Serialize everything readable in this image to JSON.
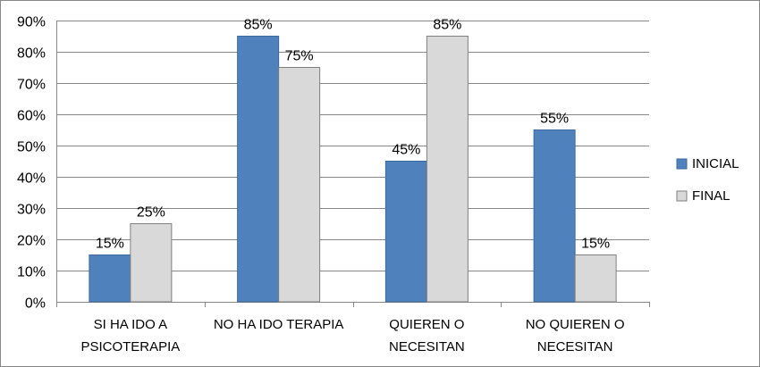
{
  "chart_data": {
    "type": "bar",
    "title": "",
    "xlabel": "",
    "ylabel": "",
    "ylim": [
      0,
      90
    ],
    "y_step": 10,
    "y_tick_format": "%",
    "grid": true,
    "legend_position": "right",
    "categories": [
      [
        "SI HA IDO A",
        "PSICOTERAPIA"
      ],
      [
        "NO HA IDO TERAPIA"
      ],
      [
        "QUIEREN O",
        "NECESITAN"
      ],
      [
        "NO QUIEREN O",
        "NECESITAN"
      ]
    ],
    "series": [
      {
        "name": "INICIAL",
        "color": "#4F81BD",
        "values": [
          15,
          85,
          45,
          55
        ]
      },
      {
        "name": "FINAL",
        "color": "#D9D9D9",
        "values": [
          25,
          75,
          85,
          15
        ]
      }
    ],
    "data_labels": [
      [
        "15%",
        "85%",
        "45%",
        "55%"
      ],
      [
        "25%",
        "75%",
        "85%",
        "15%"
      ]
    ]
  }
}
